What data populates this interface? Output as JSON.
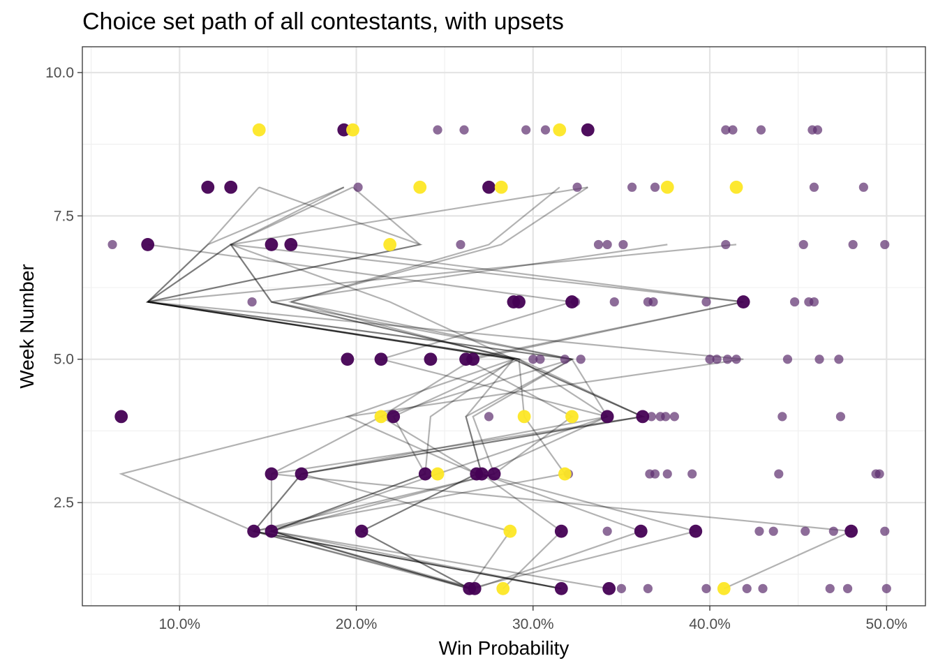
{
  "chart_data": {
    "type": "scatter",
    "title": "Choice set path of all contestants, with upsets",
    "xlabel": "Win Probability",
    "ylabel": "Week Number",
    "xlim": [
      0.045,
      0.522
    ],
    "ylim": [
      0.7,
      10.45
    ],
    "x_ticks": [
      0.1,
      0.2,
      0.3,
      0.4,
      0.5
    ],
    "x_tick_labels": [
      "10.0%",
      "20.0%",
      "30.0%",
      "40.0%",
      "50.0%"
    ],
    "y_ticks": [
      2.5,
      5.0,
      7.5,
      10.0
    ],
    "y_tick_labels": [
      "2.5",
      "5.0",
      "7.5",
      "10.0"
    ],
    "grid": true,
    "colors": {
      "chosen": "#440154",
      "upset": "#fde725",
      "unchosen": "#5c2d6e",
      "path": "#000000"
    },
    "unchosen_points": [
      {
        "x": 0.35,
        "y": 1
      },
      {
        "x": 0.365,
        "y": 1
      },
      {
        "x": 0.398,
        "y": 1
      },
      {
        "x": 0.421,
        "y": 1
      },
      {
        "x": 0.43,
        "y": 1
      },
      {
        "x": 0.468,
        "y": 1
      },
      {
        "x": 0.478,
        "y": 1
      },
      {
        "x": 0.5,
        "y": 1
      },
      {
        "x": 0.342,
        "y": 2
      },
      {
        "x": 0.428,
        "y": 2
      },
      {
        "x": 0.436,
        "y": 2
      },
      {
        "x": 0.454,
        "y": 2
      },
      {
        "x": 0.47,
        "y": 2
      },
      {
        "x": 0.499,
        "y": 2
      },
      {
        "x": 0.32,
        "y": 3
      },
      {
        "x": 0.366,
        "y": 3
      },
      {
        "x": 0.369,
        "y": 3
      },
      {
        "x": 0.376,
        "y": 3
      },
      {
        "x": 0.39,
        "y": 3
      },
      {
        "x": 0.439,
        "y": 3
      },
      {
        "x": 0.494,
        "y": 3
      },
      {
        "x": 0.496,
        "y": 3
      },
      {
        "x": 0.275,
        "y": 4
      },
      {
        "x": 0.367,
        "y": 4
      },
      {
        "x": 0.372,
        "y": 4
      },
      {
        "x": 0.375,
        "y": 4
      },
      {
        "x": 0.38,
        "y": 4
      },
      {
        "x": 0.441,
        "y": 4
      },
      {
        "x": 0.474,
        "y": 4
      },
      {
        "x": 0.3,
        "y": 5
      },
      {
        "x": 0.304,
        "y": 5
      },
      {
        "x": 0.318,
        "y": 5
      },
      {
        "x": 0.327,
        "y": 5
      },
      {
        "x": 0.4,
        "y": 5
      },
      {
        "x": 0.404,
        "y": 5
      },
      {
        "x": 0.41,
        "y": 5
      },
      {
        "x": 0.415,
        "y": 5
      },
      {
        "x": 0.444,
        "y": 5
      },
      {
        "x": 0.462,
        "y": 5
      },
      {
        "x": 0.473,
        "y": 5
      },
      {
        "x": 0.141,
        "y": 6
      },
      {
        "x": 0.324,
        "y": 6
      },
      {
        "x": 0.346,
        "y": 6
      },
      {
        "x": 0.365,
        "y": 6
      },
      {
        "x": 0.368,
        "y": 6
      },
      {
        "x": 0.398,
        "y": 6
      },
      {
        "x": 0.448,
        "y": 6
      },
      {
        "x": 0.456,
        "y": 6
      },
      {
        "x": 0.459,
        "y": 6
      },
      {
        "x": 0.062,
        "y": 7
      },
      {
        "x": 0.259,
        "y": 7
      },
      {
        "x": 0.337,
        "y": 7
      },
      {
        "x": 0.342,
        "y": 7
      },
      {
        "x": 0.351,
        "y": 7
      },
      {
        "x": 0.409,
        "y": 7
      },
      {
        "x": 0.453,
        "y": 7
      },
      {
        "x": 0.481,
        "y": 7
      },
      {
        "x": 0.499,
        "y": 7
      },
      {
        "x": 0.201,
        "y": 8
      },
      {
        "x": 0.325,
        "y": 8
      },
      {
        "x": 0.356,
        "y": 8
      },
      {
        "x": 0.369,
        "y": 8
      },
      {
        "x": 0.459,
        "y": 8
      },
      {
        "x": 0.487,
        "y": 8
      },
      {
        "x": 0.246,
        "y": 9
      },
      {
        "x": 0.261,
        "y": 9
      },
      {
        "x": 0.296,
        "y": 9
      },
      {
        "x": 0.307,
        "y": 9
      },
      {
        "x": 0.409,
        "y": 9
      },
      {
        "x": 0.413,
        "y": 9
      },
      {
        "x": 0.429,
        "y": 9
      },
      {
        "x": 0.458,
        "y": 9
      },
      {
        "x": 0.461,
        "y": 9
      }
    ],
    "chosen_points": [
      {
        "x": 0.264,
        "y": 1,
        "upset": false
      },
      {
        "x": 0.267,
        "y": 1,
        "upset": false
      },
      {
        "x": 0.283,
        "y": 1,
        "upset": true
      },
      {
        "x": 0.316,
        "y": 1,
        "upset": false
      },
      {
        "x": 0.343,
        "y": 1,
        "upset": false
      },
      {
        "x": 0.408,
        "y": 1,
        "upset": true
      },
      {
        "x": 0.142,
        "y": 2,
        "upset": false
      },
      {
        "x": 0.152,
        "y": 2,
        "upset": false
      },
      {
        "x": 0.203,
        "y": 2,
        "upset": false
      },
      {
        "x": 0.287,
        "y": 2,
        "upset": true
      },
      {
        "x": 0.316,
        "y": 2,
        "upset": false
      },
      {
        "x": 0.361,
        "y": 2,
        "upset": false
      },
      {
        "x": 0.392,
        "y": 2,
        "upset": false
      },
      {
        "x": 0.48,
        "y": 2,
        "upset": false
      },
      {
        "x": 0.152,
        "y": 3,
        "upset": false
      },
      {
        "x": 0.169,
        "y": 3,
        "upset": false
      },
      {
        "x": 0.239,
        "y": 3,
        "upset": false
      },
      {
        "x": 0.246,
        "y": 3,
        "upset": true
      },
      {
        "x": 0.268,
        "y": 3,
        "upset": false
      },
      {
        "x": 0.271,
        "y": 3,
        "upset": false
      },
      {
        "x": 0.278,
        "y": 3,
        "upset": false
      },
      {
        "x": 0.318,
        "y": 3,
        "upset": true
      },
      {
        "x": 0.067,
        "y": 4,
        "upset": false
      },
      {
        "x": 0.214,
        "y": 4,
        "upset": true
      },
      {
        "x": 0.221,
        "y": 4,
        "upset": false
      },
      {
        "x": 0.295,
        "y": 4,
        "upset": true
      },
      {
        "x": 0.322,
        "y": 4,
        "upset": true
      },
      {
        "x": 0.342,
        "y": 4,
        "upset": false
      },
      {
        "x": 0.362,
        "y": 4,
        "upset": false
      },
      {
        "x": 0.195,
        "y": 5,
        "upset": false
      },
      {
        "x": 0.214,
        "y": 5,
        "upset": false
      },
      {
        "x": 0.242,
        "y": 5,
        "upset": false
      },
      {
        "x": 0.262,
        "y": 5,
        "upset": false
      },
      {
        "x": 0.266,
        "y": 5,
        "upset": false
      },
      {
        "x": 0.289,
        "y": 6,
        "upset": false
      },
      {
        "x": 0.292,
        "y": 6,
        "upset": false
      },
      {
        "x": 0.322,
        "y": 6,
        "upset": false
      },
      {
        "x": 0.419,
        "y": 6,
        "upset": false
      },
      {
        "x": 0.082,
        "y": 7,
        "upset": false
      },
      {
        "x": 0.152,
        "y": 7,
        "upset": false
      },
      {
        "x": 0.163,
        "y": 7,
        "upset": false
      },
      {
        "x": 0.219,
        "y": 7,
        "upset": true
      },
      {
        "x": 0.116,
        "y": 8,
        "upset": false
      },
      {
        "x": 0.129,
        "y": 8,
        "upset": false
      },
      {
        "x": 0.236,
        "y": 8,
        "upset": true
      },
      {
        "x": 0.275,
        "y": 8,
        "upset": false
      },
      {
        "x": 0.282,
        "y": 8,
        "upset": true
      },
      {
        "x": 0.376,
        "y": 8,
        "upset": true
      },
      {
        "x": 0.415,
        "y": 8,
        "upset": true
      },
      {
        "x": 0.145,
        "y": 9,
        "upset": true
      },
      {
        "x": 0.193,
        "y": 9,
        "upset": false
      },
      {
        "x": 0.198,
        "y": 9,
        "upset": true
      },
      {
        "x": 0.315,
        "y": 9,
        "upset": true
      },
      {
        "x": 0.331,
        "y": 9,
        "upset": false
      }
    ],
    "paths": [
      [
        0.264,
        0.142,
        0.067,
        0.195,
        0.289,
        0.082,
        0.116,
        0.145
      ],
      [
        0.264,
        0.152,
        0.152,
        0.214,
        0.322,
        0.082,
        0.129,
        0.193
      ],
      [
        0.267,
        0.142,
        0.169,
        0.362,
        0.289,
        0.082,
        0.236,
        0.198
      ],
      [
        0.316,
        0.152,
        0.246,
        0.342,
        0.292,
        0.152,
        0.129,
        0.331
      ],
      [
        0.264,
        0.203,
        0.268,
        0.195,
        0.419,
        0.082,
        0.116,
        0.193
      ],
      [
        0.316,
        0.142,
        0.278,
        0.266,
        0.322,
        0.082,
        0.129
      ],
      [
        0.343,
        0.152,
        0.239,
        0.242,
        0.289,
        0.163,
        0.275,
        0.315
      ],
      [
        0.264,
        0.287,
        0.169,
        0.362,
        0.292,
        0.082,
        0.415
      ],
      [
        0.283,
        0.316,
        0.271,
        0.262,
        0.322,
        0.152,
        0.376
      ],
      [
        0.267,
        0.361,
        0.271,
        0.342,
        0.322,
        0.163,
        0.282,
        0.331
      ],
      [
        0.408,
        0.48,
        0.152,
        0.362,
        0.289,
        0.219,
        0.129
      ],
      [
        0.264,
        0.392,
        0.271,
        0.262,
        0.289,
        0.082,
        0.236,
        0.145
      ],
      [
        0.316,
        0.142,
        0.318,
        0.295,
        0.292,
        0.152,
        0.129,
        0.198
      ],
      [
        0.267,
        0.152,
        0.239,
        0.221,
        0.292,
        0.082
      ],
      [
        0.264,
        0.203,
        0.268,
        0.214,
        0.266,
        0.419,
        0.163
      ],
      [
        0.264,
        0.152,
        0.278,
        0.322,
        0.262,
        0.419,
        0.129
      ],
      [
        0.316,
        0.142,
        0.169,
        0.342,
        0.214,
        0.322,
        0.082
      ]
    ]
  }
}
